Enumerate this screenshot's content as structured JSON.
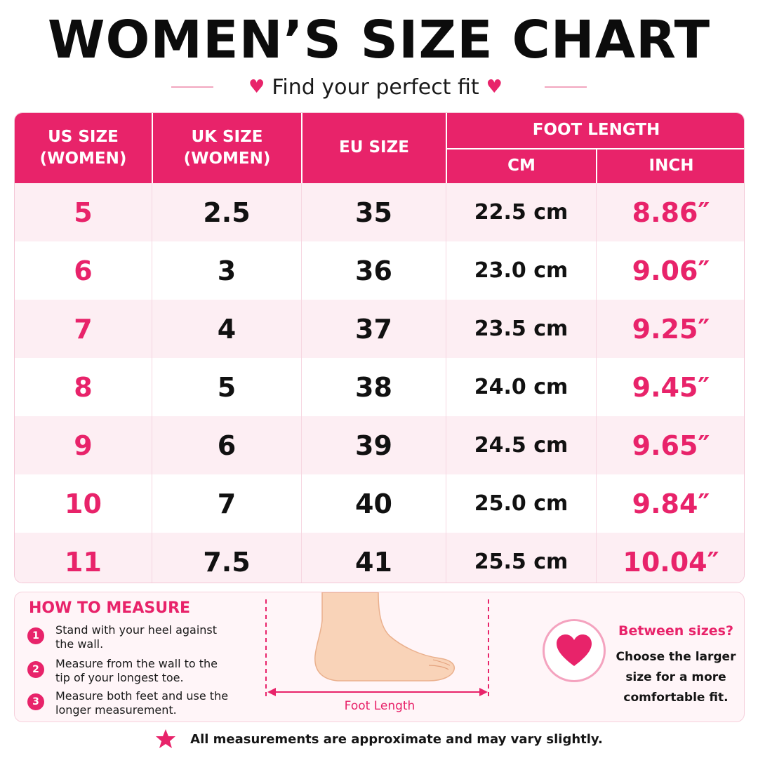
{
  "header": {
    "title": "WOMEN’S SIZE CHART",
    "subtitle": "Find your perfect fit",
    "accent_color": "#e8236a"
  },
  "table": {
    "headers": {
      "us": "US SIZE\n(WOMEN)",
      "uk": "UK SIZE\n(WOMEN)",
      "eu": "EU SIZE",
      "foot_length": "FOOT LENGTH",
      "cm": "CM",
      "inch": "INCH"
    },
    "rows": [
      {
        "us": "5",
        "uk": "2.5",
        "eu": "35",
        "cm": "22.5 cm",
        "inch": "8.86″"
      },
      {
        "us": "6",
        "uk": "3",
        "eu": "36",
        "cm": "23.0 cm",
        "inch": "9.06″"
      },
      {
        "us": "7",
        "uk": "4",
        "eu": "37",
        "cm": "23.5 cm",
        "inch": "9.25″"
      },
      {
        "us": "8",
        "uk": "5",
        "eu": "38",
        "cm": "24.0 cm",
        "inch": "9.45″"
      },
      {
        "us": "9",
        "uk": "6",
        "eu": "39",
        "cm": "24.5 cm",
        "inch": "9.65″"
      },
      {
        "us": "10",
        "uk": "7",
        "eu": "40",
        "cm": "25.0 cm",
        "inch": "9.84″"
      },
      {
        "us": "11",
        "uk": "7.5",
        "eu": "41",
        "cm": "25.5 cm",
        "inch": "10.04″"
      }
    ]
  },
  "how_to_measure": {
    "title": "HOW TO MEASURE",
    "steps": [
      {
        "num": "1",
        "text": "Stand with your heel against the wall."
      },
      {
        "num": "2",
        "text": "Measure from the wall to the tip of your longest toe."
      },
      {
        "num": "3",
        "text": "Measure both feet and use the longer measurement."
      }
    ]
  },
  "illustration": {
    "label": "Foot Length",
    "icon": "foot-icon"
  },
  "between_sizes": {
    "title": "Between sizes?",
    "text": "Choose the larger size for a more comfortable fit.",
    "icon": "heart-icon"
  },
  "footer": {
    "note": "All measurements are approximate and may vary slightly.",
    "icon": "star-icon"
  }
}
